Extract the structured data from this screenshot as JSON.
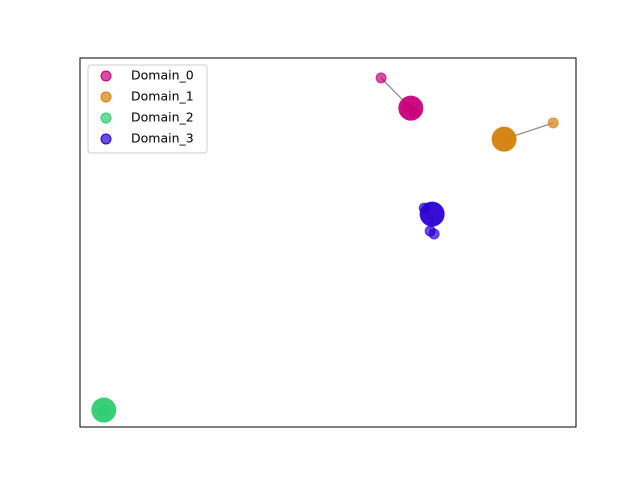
{
  "chart_data": {
    "type": "scatter",
    "xlim": [
      0,
      1
    ],
    "ylim": [
      0,
      1
    ],
    "grid": false,
    "legend": "upper left",
    "series": [
      {
        "name": "Domain_0",
        "color": "#c8007a",
        "x": [
          0.607,
          0.661,
          0.673
        ],
        "y": [
          0.946,
          0.867,
          0.854
        ],
        "centroid_x": 0.667,
        "centroid_y": 0.864
      },
      {
        "name": "Domain_1",
        "color": "#d4800a",
        "x": [
          0.954
        ],
        "y": [
          0.824
        ],
        "centroid_x": 0.855,
        "centroid_y": 0.78
      },
      {
        "name": "Domain_2",
        "color": "#2ecc71",
        "x": [
          0.048
        ],
        "y": [
          0.046
        ],
        "centroid_x": 0.048,
        "centroid_y": 0.046
      },
      {
        "name": "Domain_3",
        "color": "#2a00d4",
        "x": [
          0.694,
          0.706,
          0.714
        ],
        "y": [
          0.593,
          0.531,
          0.523
        ],
        "centroid_x": 0.71,
        "centroid_y": 0.577
      }
    ]
  }
}
